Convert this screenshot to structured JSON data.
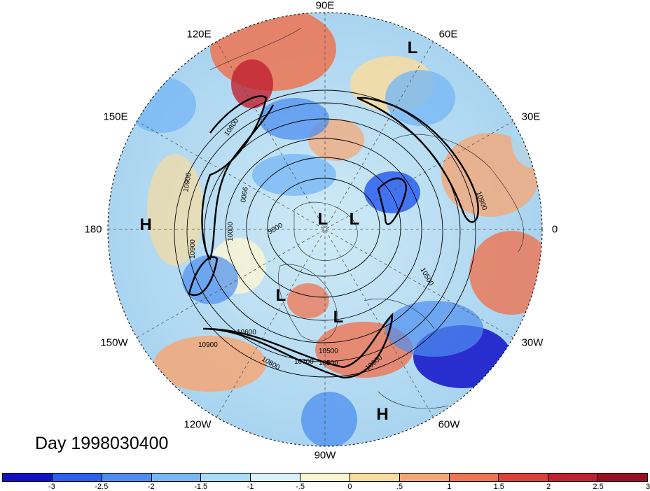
{
  "title": "Day 1998030400",
  "longitude_labels": [
    {
      "id": "90e",
      "text": "90E"
    },
    {
      "id": "60e",
      "text": "60E"
    },
    {
      "id": "30e",
      "text": "30E"
    },
    {
      "id": "0",
      "text": "0"
    },
    {
      "id": "30w",
      "text": "30W"
    },
    {
      "id": "60w",
      "text": "60W"
    },
    {
      "id": "90w",
      "text": "90W"
    },
    {
      "id": "120w",
      "text": "120W"
    },
    {
      "id": "150w",
      "text": "150W"
    },
    {
      "id": "180",
      "text": "180"
    },
    {
      "id": "150e",
      "text": "150E"
    },
    {
      "id": "120e",
      "text": "120E"
    }
  ],
  "pressure_systems": [
    {
      "id": "low-1",
      "text": "L"
    },
    {
      "id": "low-2",
      "text": "L"
    },
    {
      "id": "low-3",
      "text": "L"
    },
    {
      "id": "low-4",
      "text": "L"
    },
    {
      "id": "low-5",
      "text": "L"
    },
    {
      "id": "high-1",
      "text": "H"
    },
    {
      "id": "high-2",
      "text": "H"
    }
  ],
  "contour_labels": [
    "10800",
    "10900",
    "10900",
    "0066",
    "10000",
    "9800",
    "10500",
    "10600",
    "10500",
    "10900",
    "10900",
    "10900",
    "10800",
    "10700",
    "10500"
  ],
  "colorbar": {
    "colors": [
      "#1010c8",
      "#2a5ff0",
      "#4d8ff0",
      "#78b8f5",
      "#a8dcf8",
      "#d8f2fb",
      "#fbf6d2",
      "#f8dca0",
      "#f4a878",
      "#ef7452",
      "#e0403a",
      "#c02030",
      "#9a1020"
    ],
    "ticks": [
      "-3",
      "-2.5",
      "-2",
      "-1.5",
      "-1",
      "-.5",
      "0",
      ".5",
      "1",
      "1.5",
      "2",
      "2.5",
      "3"
    ]
  }
}
